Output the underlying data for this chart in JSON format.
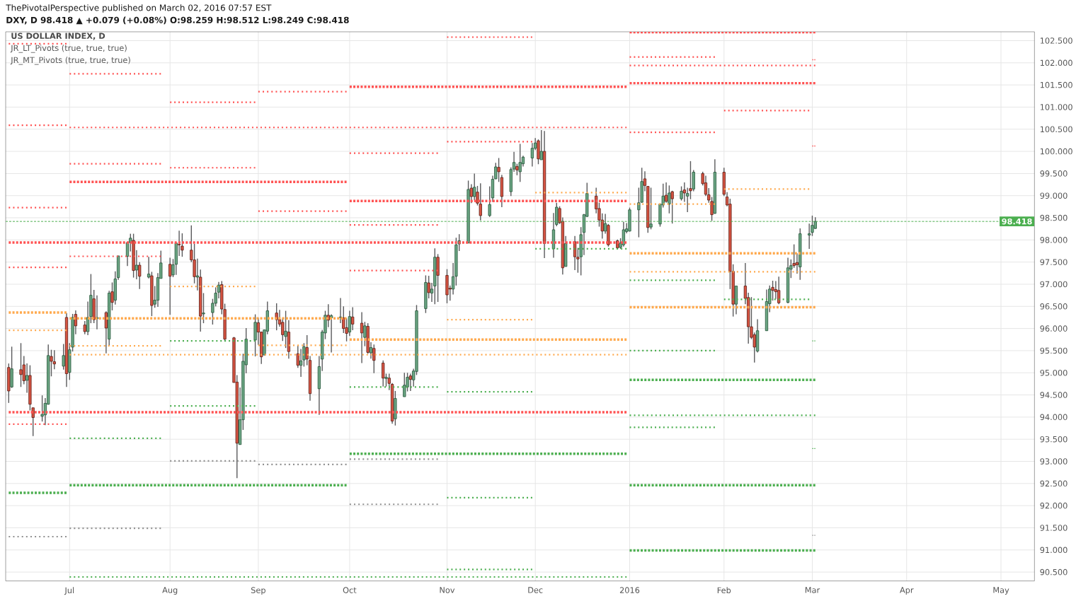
{
  "chart_data": {
    "type": "candlestick",
    "title": "US DOLLAR INDEX, D",
    "annotations": [
      "ThePivotalPerspective published on March 02, 2016 07:57 EST",
      "DXY, D 98.418 ▲ +0.079 (+0.08%) O:98.259 H:98.512 L:98.249 C:98.418",
      "JR_LT_Pivots (true, true, true)",
      "JR_MT_Pivots (true, true, true)"
    ],
    "x": [
      "2015-06-11",
      "2015-06-12",
      "2015-06-15",
      "2015-06-16",
      "2015-06-17",
      "2015-06-18",
      "2015-06-19",
      "2015-06-22",
      "2015-06-23",
      "2015-06-24",
      "2015-06-25",
      "2015-06-26",
      "2015-06-29",
      "2015-06-30",
      "2015-07-01",
      "2015-07-02",
      "2015-07-03",
      "2015-07-06",
      "2015-07-07",
      "2015-07-08",
      "2015-07-09",
      "2015-07-10",
      "2015-07-13",
      "2015-07-14",
      "2015-07-15",
      "2015-07-16",
      "2015-07-17",
      "2015-07-20",
      "2015-07-21",
      "2015-07-22",
      "2015-07-23",
      "2015-07-24",
      "2015-07-27",
      "2015-07-28",
      "2015-07-29",
      "2015-07-30",
      "2015-07-31",
      "2015-08-03",
      "2015-08-04",
      "2015-08-05",
      "2015-08-06",
      "2015-08-07",
      "2015-08-10",
      "2015-08-11",
      "2015-08-12",
      "2015-08-13",
      "2015-08-14",
      "2015-08-17",
      "2015-08-18",
      "2015-08-19",
      "2015-08-20",
      "2015-08-21",
      "2015-08-24",
      "2015-08-25",
      "2015-08-26",
      "2015-08-27",
      "2015-08-28",
      "2015-08-31",
      "2015-09-01",
      "2015-09-02",
      "2015-09-03",
      "2015-09-04",
      "2015-09-07",
      "2015-09-08",
      "2015-09-09",
      "2015-09-10",
      "2015-09-11",
      "2015-09-14",
      "2015-09-15",
      "2015-09-16",
      "2015-09-17",
      "2015-09-18",
      "2015-09-21",
      "2015-09-22",
      "2015-09-23",
      "2015-09-24",
      "2015-09-25",
      "2015-09-28",
      "2015-09-29",
      "2015-09-30",
      "2015-10-01",
      "2015-10-02",
      "2015-10-05",
      "2015-10-06",
      "2015-10-07",
      "2015-10-08",
      "2015-10-09",
      "2015-10-12",
      "2015-10-13",
      "2015-10-14",
      "2015-10-15",
      "2015-10-16",
      "2015-10-19",
      "2015-10-20",
      "2015-10-21",
      "2015-10-22",
      "2015-10-23",
      "2015-10-26",
      "2015-10-27",
      "2015-10-28",
      "2015-10-29",
      "2015-10-30",
      "2015-11-02",
      "2015-11-03",
      "2015-11-04",
      "2015-11-05",
      "2015-11-06",
      "2015-11-09",
      "2015-11-10",
      "2015-11-11",
      "2015-11-12",
      "2015-11-13",
      "2015-11-16",
      "2015-11-17",
      "2015-11-18",
      "2015-11-19",
      "2015-11-20",
      "2015-11-23",
      "2015-11-24",
      "2015-11-25",
      "2015-11-26",
      "2015-11-27",
      "2015-11-30",
      "2015-12-01",
      "2015-12-02",
      "2015-12-03",
      "2015-12-04",
      "2015-12-07",
      "2015-12-08",
      "2015-12-09",
      "2015-12-10",
      "2015-12-11",
      "2015-12-14",
      "2015-12-15",
      "2015-12-16",
      "2015-12-17",
      "2015-12-18",
      "2015-12-21",
      "2015-12-22",
      "2015-12-23",
      "2015-12-24",
      "2015-12-25",
      "2015-12-28",
      "2015-12-29",
      "2015-12-30",
      "2015-12-31",
      "2016-01-01",
      "2016-01-04",
      "2016-01-05",
      "2016-01-06",
      "2016-01-07",
      "2016-01-08",
      "2016-01-11",
      "2016-01-12",
      "2016-01-13",
      "2016-01-14",
      "2016-01-15",
      "2016-01-18",
      "2016-01-19",
      "2016-01-20",
      "2016-01-21",
      "2016-01-22",
      "2016-01-25",
      "2016-01-26",
      "2016-01-27",
      "2016-01-28",
      "2016-01-29",
      "2016-02-01",
      "2016-02-02",
      "2016-02-03",
      "2016-02-04",
      "2016-02-05",
      "2016-02-08",
      "2016-02-09",
      "2016-02-10",
      "2016-02-11",
      "2016-02-12",
      "2016-02-15",
      "2016-02-16",
      "2016-02-17",
      "2016-02-18",
      "2016-02-19",
      "2016-02-22",
      "2016-02-23",
      "2016-02-24",
      "2016-02-25",
      "2016-02-26",
      "2016-02-29",
      "2016-03-01",
      "2016-03-02"
    ],
    "ohlc": [
      [
        95.12,
        95.21,
        94.32,
        94.59
      ],
      [
        94.68,
        95.59,
        94.66,
        95.09
      ],
      [
        95.07,
        95.67,
        94.68,
        94.96
      ],
      [
        95.18,
        95.38,
        94.74,
        94.82
      ],
      [
        94.83,
        95.21,
        94.55,
        94.94
      ],
      [
        94.94,
        95.17,
        94.15,
        94.29
      ],
      [
        94.21,
        94.21,
        93.57,
        93.99
      ],
      [
        94.02,
        94.49,
        93.9,
        94.06
      ],
      [
        94.05,
        94.43,
        93.82,
        94.31
      ],
      [
        94.29,
        95.64,
        94.28,
        95.39
      ],
      [
        95.37,
        95.52,
        94.92,
        95.26
      ],
      [
        95.25,
        95.51,
        95.08,
        95.2
      ],
      [
        95.15,
        95.65,
        95.07,
        95.39
      ],
      [
        96.25,
        96.35,
        94.68,
        94.98
      ],
      [
        95.01,
        95.67,
        94.84,
        95.52
      ],
      [
        95.58,
        96.33,
        95.48,
        96.25
      ],
      [
        96.32,
        96.41,
        95.87,
        96.06
      ],
      [
        96.08,
        96.17,
        95.87,
        95.93
      ],
      [
        95.93,
        96.61,
        95.85,
        96.25
      ],
      [
        96.27,
        97.23,
        96.12,
        96.75
      ],
      [
        96.67,
        96.87,
        96.12,
        96.2
      ],
      [
        96.22,
        96.75,
        95.98,
        96.25
      ],
      [
        96.36,
        96.39,
        95.44,
        96.01
      ],
      [
        95.76,
        96.85,
        95.61,
        96.8
      ],
      [
        96.83,
        97.04,
        96.41,
        96.59
      ],
      [
        96.64,
        97.29,
        96.54,
        97.12
      ],
      [
        97.15,
        97.64,
        97.1,
        97.64
      ],
      [
        97.63,
        97.94,
        97.41,
        97.94
      ],
      [
        97.94,
        98.14,
        97.74,
        98.04
      ],
      [
        97.99,
        98.14,
        97.15,
        97.31
      ],
      [
        97.32,
        97.77,
        97.11,
        97.43
      ],
      [
        97.43,
        97.5,
        96.89,
        97.18
      ],
      [
        97.16,
        97.62,
        97.13,
        97.23
      ],
      [
        97.19,
        97.28,
        96.28,
        96.52
      ],
      [
        96.55,
        96.96,
        96.47,
        96.64
      ],
      [
        96.64,
        97.25,
        96.49,
        97.15
      ],
      [
        97.13,
        97.76,
        97.13,
        97.48
      ],
      [
        97.45,
        97.6,
        96.31,
        97.18
      ],
      [
        97.21,
        97.57,
        97.16,
        97.44
      ],
      [
        97.45,
        97.93,
        97.21,
        97.93
      ],
      [
        97.9,
        98.21,
        97.64,
        97.89
      ],
      [
        97.86,
        98.15,
        97.62,
        97.77
      ],
      [
        97.77,
        98.33,
        97.5,
        97.55
      ],
      [
        97.55,
        97.91,
        97.02,
        97.17
      ],
      [
        97.16,
        97.58,
        96.86,
        97.19
      ],
      [
        97.16,
        97.33,
        95.93,
        96.28
      ],
      [
        96.33,
        96.8,
        96.12,
        96.35
      ],
      [
        96.36,
        96.67,
        96.09,
        96.57
      ],
      [
        96.57,
        96.93,
        96.5,
        96.8
      ],
      [
        96.82,
        97.05,
        96.68,
        96.98
      ],
      [
        96.99,
        97.07,
        96.32,
        96.44
      ],
      [
        96.43,
        96.56,
        95.71,
        95.76
      ],
      [
        95.79,
        95.81,
        94.78,
        94.78
      ],
      [
        94.79,
        94.95,
        92.62,
        93.41
      ],
      [
        93.38,
        94.67,
        93.38,
        93.94
      ],
      [
        93.94,
        95.43,
        93.71,
        95.26
      ],
      [
        95.18,
        96.01,
        94.99,
        95.76
      ],
      [
        95.74,
        96.32,
        95.37,
        96.14
      ],
      [
        96.13,
        96.24,
        95.63,
        95.92
      ],
      [
        95.92,
        95.93,
        95.2,
        95.36
      ],
      [
        95.4,
        95.97,
        95.4,
        95.97
      ],
      [
        95.94,
        96.61,
        95.87,
        96.4
      ],
      [
        96.35,
        96.57,
        95.96,
        96.2
      ],
      [
        96.2,
        96.42,
        96.04,
        96.1
      ],
      [
        96.14,
        96.24,
        95.72,
        95.86
      ],
      [
        95.82,
        96.4,
        95.56,
        95.94
      ],
      [
        95.92,
        96.19,
        95.32,
        95.48
      ],
      [
        95.43,
        95.62,
        95.11,
        95.17
      ],
      [
        95.17,
        95.54,
        94.91,
        95.27
      ],
      [
        95.29,
        95.67,
        95.14,
        95.59
      ],
      [
        95.57,
        95.85,
        95.17,
        95.31
      ],
      [
        95.28,
        95.38,
        94.37,
        94.53
      ],
      [
        94.64,
        95.38,
        94.05,
        95.14
      ],
      [
        95.31,
        95.97,
        95.04,
        95.92
      ],
      [
        95.9,
        96.4,
        95.76,
        96.3
      ],
      [
        96.3,
        96.55,
        96.03,
        96.19
      ],
      [
        96.24,
        96.32,
        95.46,
        96.29
      ],
      [
        96.25,
        96.69,
        96.12,
        96.26
      ],
      [
        96.24,
        96.5,
        95.9,
        96
      ],
      [
        96.02,
        96.23,
        95.71,
        95.89
      ],
      [
        95.92,
        96.4,
        95.83,
        96.27
      ],
      [
        96.26,
        96.48,
        95.96,
        96.1
      ],
      [
        96.12,
        96.37,
        95.22,
        95.9
      ],
      [
        95.8,
        96.15,
        95.6,
        96.06
      ],
      [
        96.05,
        96.12,
        95.43,
        95.46
      ],
      [
        95.45,
        95.69,
        95.32,
        95.57
      ],
      [
        95.55,
        95.64,
        94.99,
        95.28
      ],
      [
        95.22,
        95.28,
        94.69,
        94.88
      ],
      [
        94.87,
        94.98,
        94.69,
        94.9
      ],
      [
        94.88,
        94.98,
        94.61,
        94.76
      ],
      [
        94.74,
        94.77,
        93.85,
        93.91
      ],
      [
        93.96,
        94.59,
        93.81,
        94.42
      ],
      [
        94.46,
        95,
        94.46,
        94.72
      ],
      [
        94.68,
        95,
        94.58,
        94.9
      ],
      [
        94.93,
        94.98,
        94.59,
        94.85
      ],
      [
        94.84,
        95.09,
        94.69,
        95.04
      ],
      [
        95.03,
        96.53,
        94.95,
        96.4
      ],
      [
        96.45,
        97.2,
        96.35,
        97.04
      ],
      [
        97.03,
        97.19,
        96.68,
        96.81
      ],
      [
        96.8,
        97.03,
        96.6,
        96.89
      ],
      [
        96.96,
        97.81,
        96.55,
        97.61
      ],
      [
        97.61,
        97.68,
        96.6,
        97.2
      ],
      [
        97.2,
        97.34,
        96.57,
        96.76
      ],
      [
        96.91,
        96.97,
        96.63,
        96.89
      ],
      [
        96.89,
        97.48,
        96.77,
        97.17
      ],
      [
        97.18,
        98.05,
        96.97,
        97.89
      ],
      [
        97.91,
        98.13,
        97.75,
        97.98
      ],
      [
        97.93,
        99.34,
        97.93,
        99.14
      ],
      [
        99.17,
        99.26,
        98.83,
        98.98
      ],
      [
        98.98,
        99.5,
        98.89,
        99.19
      ],
      [
        99.08,
        99.22,
        98.78,
        98.83
      ],
      [
        98.81,
        99.28,
        98.44,
        98.55
      ],
      [
        98.55,
        99.21,
        98.52,
        98.8
      ],
      [
        98.95,
        99.45,
        98.86,
        99.37
      ],
      [
        99.38,
        99.74,
        99.37,
        99.65
      ],
      [
        99.64,
        99.85,
        99.31,
        99.54
      ],
      [
        99.41,
        99.47,
        98.74,
        98.98
      ],
      [
        99.09,
        99.64,
        98.99,
        99.59
      ],
      [
        99.6,
        99.99,
        99.54,
        99.75
      ],
      [
        99.66,
        99.72,
        99.46,
        99.58
      ],
      [
        99.54,
        100.17,
        99.31,
        99.75
      ],
      [
        99.72,
        99.9,
        99.66,
        99.87
      ],
      [
        99.85,
        100.19,
        99.66,
        100.07
      ],
      [
        100.07,
        100.3,
        100.03,
        100.19
      ],
      [
        100.24,
        100.27,
        99.71,
        99.83
      ],
      [
        99.81,
        100.48,
        99.81,
        100
      ],
      [
        100,
        100.46,
        97.59,
        97.92
      ],
      [
        97.8,
        98.61,
        97.6,
        98.23
      ],
      [
        98.35,
        98.84,
        98.31,
        98.74
      ],
      [
        98.71,
        98.76,
        98.36,
        98.39
      ],
      [
        98.42,
        98.51,
        97.22,
        97.37
      ],
      [
        97.4,
        98.09,
        97.4,
        97.92
      ],
      [
        97.96,
        98.09,
        97.32,
        97.62
      ],
      [
        97.61,
        97.82,
        97.26,
        97.57
      ],
      [
        97.62,
        98.29,
        97.2,
        98.12
      ],
      [
        98.17,
        98.59,
        97.66,
        98.57
      ],
      [
        98.53,
        99.29,
        98.52,
        99.05
      ],
      [
        98.99,
        99.18,
        98.6,
        98.7
      ],
      [
        98.71,
        98.84,
        98.3,
        98.45
      ],
      [
        98.45,
        98.6,
        98.03,
        98.2
      ],
      [
        98.2,
        98.59,
        98.14,
        98.37
      ],
      [
        98.33,
        98.36,
        97.85,
        97.89
      ],
      [
        97.98,
        98.01,
        97.81,
        97.82
      ],
      [
        97.83,
        98.04,
        97.8,
        97.93
      ],
      [
        97.89,
        98.41,
        97.85,
        98.23
      ],
      [
        98.19,
        98.38,
        98.15,
        98.25
      ],
      [
        98.2,
        98.73,
        98.19,
        98.68
      ],
      [
        98.68,
        99.18,
        98.06,
        98.84
      ],
      [
        98.85,
        99.63,
        98.84,
        99.32
      ],
      [
        99.38,
        99.55,
        99.1,
        99.23
      ],
      [
        99.21,
        99.21,
        98.16,
        98.28
      ],
      [
        98.29,
        99.18,
        98.24,
        98.36
      ],
      [
        98.36,
        98.81,
        98.3,
        98.81
      ],
      [
        98.79,
        99.27,
        98.73,
        98.99
      ],
      [
        99.01,
        99.3,
        98.84,
        98.87
      ],
      [
        98.81,
        99.23,
        98.6,
        99.06
      ],
      [
        99.09,
        99.11,
        98.37,
        98.93
      ],
      [
        98.93,
        99.21,
        98.89,
        99.1
      ],
      [
        99.13,
        99.3,
        98.86,
        99.06
      ],
      [
        98.99,
        99.18,
        98.63,
        99.05
      ],
      [
        99.16,
        99.78,
        98.92,
        99.11
      ],
      [
        99.15,
        99.58,
        99.1,
        99.53
      ],
      [
        99.5,
        99.54,
        99.23,
        99.27
      ],
      [
        99.29,
        99.45,
        98.99,
        99.03
      ],
      [
        99.02,
        99.17,
        98.84,
        98.9
      ],
      [
        98.87,
        98.97,
        98.43,
        98.57
      ],
      [
        98.6,
        99.82,
        98.59,
        99.53
      ],
      [
        99.53,
        99.63,
        98.99,
        99.03
      ],
      [
        98.97,
        99.08,
        98.76,
        98.79
      ],
      [
        98.81,
        98.93,
        96.89,
        97.29
      ],
      [
        97.29,
        97.45,
        96.27,
        96.55
      ],
      [
        96.55,
        96.96,
        96.32,
        96.96
      ],
      [
        96.96,
        97.48,
        96.55,
        96.68
      ],
      [
        96.7,
        96.81,
        95.66,
        96.04
      ],
      [
        96.04,
        96.71,
        95.76,
        95.8
      ],
      [
        95.86,
        95.91,
        95.23,
        95.58
      ],
      [
        95.49,
        96.21,
        95.46,
        95.95
      ],
      [
        95.95,
        96.88,
        95.95,
        96.61
      ],
      [
        96.56,
        96.97,
        96.37,
        96.89
      ],
      [
        96.93,
        97.08,
        96.63,
        96.86
      ],
      [
        96.88,
        97.07,
        96.67,
        96.83
      ],
      [
        96.86,
        97.17,
        96.55,
        96.58
      ],
      [
        96.59,
        97.6,
        96.57,
        97.37
      ],
      [
        97.34,
        97.56,
        97.14,
        97.42
      ],
      [
        97.47,
        97.9,
        97.37,
        97.42
      ],
      [
        97.49,
        97.7,
        97.24,
        97.44
      ],
      [
        97.39,
        98.26,
        97.1,
        98.14
      ],
      [
        98.11,
        98.37,
        97.8,
        98.14
      ],
      [
        98.17,
        98.55,
        98.09,
        98.33
      ],
      [
        98.259,
        98.512,
        98.249,
        98.418
      ]
    ],
    "series": [
      {
        "type": "line",
        "x": [
          "2015-06-11",
          "2015-06-30"
        ],
        "values": [
          102.43,
          102.43
        ],
        "color": "#ff5252",
        "line_style": "dotted"
      },
      {
        "type": "line",
        "x": [
          "2015-11-02",
          "2015-11-30"
        ],
        "values": [
          102.58,
          102.58
        ],
        "color": "#ff5252",
        "line_style": "dotted"
      },
      {
        "type": "line",
        "x": [
          "2016-01-01",
          "2016-03-02"
        ],
        "values": [
          102.69,
          102.69
        ],
        "color": "#ff5252",
        "line_style": "dashed"
      },
      {
        "type": "line",
        "x": [
          "2016-01-01",
          "2016-01-29"
        ],
        "values": [
          102.13,
          102.13
        ],
        "color": "#ff5252",
        "line_style": "dotted"
      },
      {
        "type": "line",
        "x": [
          "2016-03-01",
          "2016-03-02"
        ],
        "values": [
          102.07,
          102.07
        ],
        "color": "#ff5252",
        "line_style": "dotted"
      },
      {
        "type": "line",
        "x": [
          "2016-01-01",
          "2016-03-02"
        ],
        "values": [
          101.94,
          101.94
        ],
        "color": "#ff5252",
        "line_style": "dotted"
      },
      {
        "type": "line",
        "x": [
          "2015-07-01",
          "2015-07-31"
        ],
        "values": [
          101.75,
          101.75
        ],
        "color": "#ff5252",
        "line_style": "dotted"
      },
      {
        "type": "line",
        "x": [
          "2016-01-01",
          "2016-03-02"
        ],
        "values": [
          101.54,
          101.54
        ],
        "color": "#ff5252",
        "line_style": "dashed"
      },
      {
        "type": "line",
        "x": [
          "2015-10-01",
          "2015-12-31"
        ],
        "values": [
          101.46,
          101.46
        ],
        "color": "#ff5252",
        "line_style": "dashed"
      },
      {
        "type": "line",
        "x": [
          "2015-09-01",
          "2015-09-30"
        ],
        "values": [
          101.35,
          101.35
        ],
        "color": "#ff5252",
        "line_style": "dotted"
      },
      {
        "type": "line",
        "x": [
          "2015-08-03",
          "2015-08-31"
        ],
        "values": [
          101.11,
          101.11
        ],
        "color": "#ff5252",
        "line_style": "dotted"
      },
      {
        "type": "line",
        "x": [
          "2016-02-01",
          "2016-02-29"
        ],
        "values": [
          100.92,
          100.92
        ],
        "color": "#ff5252",
        "line_style": "dotted"
      },
      {
        "type": "line",
        "x": [
          "2015-06-11",
          "2015-06-30"
        ],
        "values": [
          100.59,
          100.59
        ],
        "color": "#ff5252",
        "line_style": "dotted"
      },
      {
        "type": "line",
        "x": [
          "2015-07-01",
          "2015-12-31"
        ],
        "values": [
          100.54,
          100.54
        ],
        "color": "#ff5252",
        "line_style": "dotted"
      },
      {
        "type": "line",
        "x": [
          "2016-01-01",
          "2016-01-29"
        ],
        "values": [
          100.43,
          100.43
        ],
        "color": "#ff5252",
        "line_style": "dotted"
      },
      {
        "type": "line",
        "x": [
          "2015-11-02",
          "2015-11-30"
        ],
        "values": [
          100.22,
          100.22
        ],
        "color": "#ff5252",
        "line_style": "dotted"
      },
      {
        "type": "line",
        "x": [
          "2016-03-01",
          "2016-03-02"
        ],
        "values": [
          100.12,
          100.12
        ],
        "color": "#ff5252",
        "line_style": "dotted"
      },
      {
        "type": "line",
        "x": [
          "2015-10-01",
          "2015-10-30"
        ],
        "values": [
          99.96,
          99.96
        ],
        "color": "#ff5252",
        "line_style": "dotted"
      },
      {
        "type": "line",
        "x": [
          "2015-07-01",
          "2015-07-31"
        ],
        "values": [
          99.72,
          99.72
        ],
        "color": "#ff5252",
        "line_style": "dotted"
      },
      {
        "type": "line",
        "x": [
          "2015-08-03",
          "2015-08-31"
        ],
        "values": [
          99.63,
          99.63
        ],
        "color": "#ff5252",
        "line_style": "dotted"
      },
      {
        "type": "line",
        "x": [
          "2015-07-01",
          "2015-09-30"
        ],
        "values": [
          99.31,
          99.31
        ],
        "color": "#ff5252",
        "line_style": "dashed"
      },
      {
        "type": "line",
        "x": [
          "2015-10-01",
          "2015-12-31"
        ],
        "values": [
          98.88,
          98.88
        ],
        "color": "#ff5252",
        "line_style": "dashed"
      },
      {
        "type": "line",
        "x": [
          "2015-06-11",
          "2015-06-30"
        ],
        "values": [
          98.73,
          98.73
        ],
        "color": "#ff5252",
        "line_style": "dotted"
      },
      {
        "type": "line",
        "x": [
          "2015-09-01",
          "2015-09-30"
        ],
        "values": [
          98.65,
          98.65
        ],
        "color": "#ff5252",
        "line_style": "dotted"
      },
      {
        "type": "line",
        "x": [
          "2015-10-01",
          "2015-10-30"
        ],
        "values": [
          98.34,
          98.34
        ],
        "color": "#ff5252",
        "line_style": "dotted"
      },
      {
        "type": "line",
        "x": [
          "2015-06-11",
          "2015-12-31"
        ],
        "values": [
          97.94,
          97.94
        ],
        "color": "#ff5252",
        "line_style": "dashed"
      },
      {
        "type": "line",
        "x": [
          "2015-07-01",
          "2015-07-31"
        ],
        "values": [
          97.63,
          97.63
        ],
        "color": "#ff5252",
        "line_style": "dotted"
      },
      {
        "type": "line",
        "x": [
          "2015-06-11",
          "2015-06-30"
        ],
        "values": [
          97.38,
          97.38
        ],
        "color": "#ff5252",
        "line_style": "dotted"
      },
      {
        "type": "line",
        "x": [
          "2015-10-01",
          "2015-10-30"
        ],
        "values": [
          97.31,
          97.31
        ],
        "color": "#ff5252",
        "line_style": "dotted"
      },
      {
        "type": "line",
        "x": [
          "2015-06-11",
          "2015-12-31"
        ],
        "values": [
          94.11,
          94.11
        ],
        "color": "#ff5252",
        "line_style": "dashed"
      },
      {
        "type": "line",
        "x": [
          "2015-06-11",
          "2015-06-30"
        ],
        "values": [
          93.84,
          93.84
        ],
        "color": "#ff5252",
        "line_style": "dotted"
      },
      {
        "type": "line",
        "x": [
          "2015-12-01",
          "2015-12-31"
        ],
        "values": [
          99.07,
          99.07
        ],
        "color": "#ffa94d",
        "line_style": "dotted"
      },
      {
        "type": "line",
        "x": [
          "2016-02-01",
          "2016-02-29"
        ],
        "values": [
          99.15,
          99.15
        ],
        "color": "#ffa94d",
        "line_style": "dotted"
      },
      {
        "type": "line",
        "x": [
          "2016-01-01",
          "2016-01-29"
        ],
        "values": [
          98.81,
          98.81
        ],
        "color": "#ffa94d",
        "line_style": "dotted"
      },
      {
        "type": "line",
        "x": [
          "2016-01-01",
          "2016-03-02"
        ],
        "values": [
          97.7,
          97.7
        ],
        "color": "#ffa94d",
        "line_style": "dashed"
      },
      {
        "type": "line",
        "x": [
          "2016-01-01",
          "2016-03-02"
        ],
        "values": [
          97.28,
          97.28
        ],
        "color": "#ffa94d",
        "line_style": "dotted"
      },
      {
        "type": "line",
        "x": [
          "2015-08-03",
          "2015-08-31"
        ],
        "values": [
          96.95,
          96.95
        ],
        "color": "#ffa94d",
        "line_style": "dotted"
      },
      {
        "type": "line",
        "x": [
          "2016-01-01",
          "2016-03-02"
        ],
        "values": [
          96.48,
          96.48
        ],
        "color": "#ffa94d",
        "line_style": "dashed"
      },
      {
        "type": "line",
        "x": [
          "2015-06-11",
          "2015-06-30"
        ],
        "values": [
          96.36,
          96.36
        ],
        "color": "#ffa94d",
        "line_style": "dashed"
      },
      {
        "type": "line",
        "x": [
          "2015-07-01",
          "2015-09-30"
        ],
        "values": [
          96.23,
          96.23
        ],
        "color": "#ffa94d",
        "line_style": "dashed"
      },
      {
        "type": "line",
        "x": [
          "2015-11-02",
          "2015-11-30"
        ],
        "values": [
          96.2,
          96.2
        ],
        "color": "#ffa94d",
        "line_style": "dotted"
      },
      {
        "type": "line",
        "x": [
          "2015-06-11",
          "2015-06-30"
        ],
        "values": [
          95.96,
          95.96
        ],
        "color": "#ffa94d",
        "line_style": "dotted"
      },
      {
        "type": "line",
        "x": [
          "2015-10-01",
          "2015-12-31"
        ],
        "values": [
          95.75,
          95.75
        ],
        "color": "#ffa94d",
        "line_style": "dashed"
      },
      {
        "type": "line",
        "x": [
          "2015-07-01",
          "2015-07-31"
        ],
        "values": [
          95.61,
          95.61
        ],
        "color": "#ffa94d",
        "line_style": "dotted"
      },
      {
        "type": "line",
        "x": [
          "2015-09-01",
          "2015-09-30"
        ],
        "values": [
          95.62,
          95.62
        ],
        "color": "#ffa94d",
        "line_style": "dotted"
      },
      {
        "type": "line",
        "x": [
          "2015-07-01",
          "2015-12-31"
        ],
        "values": [
          95.41,
          95.41
        ],
        "color": "#ffa94d",
        "line_style": "dotted"
      },
      {
        "type": "line",
        "x": [
          "2015-12-01",
          "2015-12-31"
        ],
        "values": [
          97.8,
          97.8
        ],
        "color": "#4caf50",
        "line_style": "dotted"
      },
      {
        "type": "line",
        "x": [
          "2016-01-01",
          "2016-01-29"
        ],
        "values": [
          97.09,
          97.09
        ],
        "color": "#4caf50",
        "line_style": "dotted"
      },
      {
        "type": "line",
        "x": [
          "2016-02-01",
          "2016-02-29"
        ],
        "values": [
          96.66,
          96.66
        ],
        "color": "#4caf50",
        "line_style": "dotted"
      },
      {
        "type": "line",
        "x": [
          "2015-08-03",
          "2015-08-31"
        ],
        "values": [
          95.72,
          95.72
        ],
        "color": "#4caf50",
        "line_style": "dotted"
      },
      {
        "type": "line",
        "x": [
          "2016-03-01",
          "2016-03-02"
        ],
        "values": [
          95.72,
          95.72
        ],
        "color": "#4caf50",
        "line_style": "dotted"
      },
      {
        "type": "line",
        "x": [
          "2016-01-01",
          "2016-01-29"
        ],
        "values": [
          95.5,
          95.5
        ],
        "color": "#4caf50",
        "line_style": "dotted"
      },
      {
        "type": "line",
        "x": [
          "2016-01-01",
          "2016-03-02"
        ],
        "values": [
          94.84,
          94.84
        ],
        "color": "#4caf50",
        "line_style": "dashed"
      },
      {
        "type": "line",
        "x": [
          "2015-10-01",
          "2015-10-30"
        ],
        "values": [
          94.68,
          94.68
        ],
        "color": "#4caf50",
        "line_style": "dotted"
      },
      {
        "type": "line",
        "x": [
          "2015-11-02",
          "2015-11-30"
        ],
        "values": [
          94.57,
          94.57
        ],
        "color": "#4caf50",
        "line_style": "dotted"
      },
      {
        "type": "line",
        "x": [
          "2015-08-03",
          "2015-08-31"
        ],
        "values": [
          94.25,
          94.25
        ],
        "color": "#4caf50",
        "line_style": "dotted"
      },
      {
        "type": "line",
        "x": [
          "2016-01-01",
          "2016-03-02"
        ],
        "values": [
          94.04,
          94.04
        ],
        "color": "#4caf50",
        "line_style": "dotted"
      },
      {
        "type": "line",
        "x": [
          "2016-01-01",
          "2016-01-29"
        ],
        "values": [
          93.77,
          93.77
        ],
        "color": "#4caf50",
        "line_style": "dotted"
      },
      {
        "type": "line",
        "x": [
          "2015-07-01",
          "2015-07-31"
        ],
        "values": [
          93.52,
          93.52
        ],
        "color": "#4caf50",
        "line_style": "dotted"
      },
      {
        "type": "line",
        "x": [
          "2016-03-01",
          "2016-03-02"
        ],
        "values": [
          93.29,
          93.29
        ],
        "color": "#4caf50",
        "line_style": "dotted"
      },
      {
        "type": "line",
        "x": [
          "2015-10-01",
          "2015-12-31"
        ],
        "values": [
          93.17,
          93.17
        ],
        "color": "#4caf50",
        "line_style": "dashed"
      },
      {
        "type": "line",
        "x": [
          "2015-10-01",
          "2015-10-30"
        ],
        "values": [
          93.05,
          93.05
        ],
        "color": "#909090",
        "line_style": "dotted"
      },
      {
        "type": "line",
        "x": [
          "2015-08-03",
          "2015-08-31"
        ],
        "values": [
          93.01,
          93.01
        ],
        "color": "#909090",
        "line_style": "dotted"
      },
      {
        "type": "line",
        "x": [
          "2015-09-01",
          "2015-09-30"
        ],
        "values": [
          92.93,
          92.93
        ],
        "color": "#909090",
        "line_style": "dotted"
      },
      {
        "type": "line",
        "x": [
          "2015-07-01",
          "2015-09-30"
        ],
        "values": [
          92.46,
          92.46
        ],
        "color": "#4caf50",
        "line_style": "dashed"
      },
      {
        "type": "line",
        "x": [
          "2016-01-01",
          "2016-03-02"
        ],
        "values": [
          92.46,
          92.46
        ],
        "color": "#4caf50",
        "line_style": "dashed"
      },
      {
        "type": "line",
        "x": [
          "2015-06-11",
          "2015-06-30"
        ],
        "values": [
          92.29,
          92.29
        ],
        "color": "#4caf50",
        "line_style": "dashed"
      },
      {
        "type": "line",
        "x": [
          "2015-11-02",
          "2015-11-30"
        ],
        "values": [
          92.18,
          92.18
        ],
        "color": "#4caf50",
        "line_style": "dotted"
      },
      {
        "type": "line",
        "x": [
          "2015-10-01",
          "2015-10-30"
        ],
        "values": [
          92.03,
          92.03
        ],
        "color": "#909090",
        "line_style": "dotted"
      },
      {
        "type": "line",
        "x": [
          "2015-07-01",
          "2015-07-31"
        ],
        "values": [
          91.49,
          91.49
        ],
        "color": "#909090",
        "line_style": "dotted"
      },
      {
        "type": "line",
        "x": [
          "2016-03-01",
          "2016-03-02"
        ],
        "values": [
          91.33,
          91.33
        ],
        "color": "#909090",
        "line_style": "dotted"
      },
      {
        "type": "line",
        "x": [
          "2015-06-11",
          "2015-06-30"
        ],
        "values": [
          91.3,
          91.3
        ],
        "color": "#909090",
        "line_style": "dotted"
      },
      {
        "type": "line",
        "x": [
          "2016-01-01",
          "2016-03-02"
        ],
        "values": [
          90.99,
          90.99
        ],
        "color": "#4caf50",
        "line_style": "dashed"
      },
      {
        "type": "line",
        "x": [
          "2015-11-02",
          "2015-11-30"
        ],
        "values": [
          90.56,
          90.56
        ],
        "color": "#4caf50",
        "line_style": "dotted"
      },
      {
        "type": "line",
        "x": [
          "2015-07-01",
          "2015-12-31"
        ],
        "values": [
          90.39,
          90.39
        ],
        "color": "#4caf50",
        "line_style": "dotted"
      }
    ],
    "ref_lines": [
      {
        "axis": "y",
        "value": 98.418,
        "label": "98.418",
        "color": "#4caf50",
        "line_style": "dashed"
      }
    ],
    "xlim": [
      "2015-06-10",
      "2016-05-13"
    ],
    "ylim": [
      90.3,
      102.7
    ],
    "xticks": [
      {
        "value": "2015-07-01",
        "label": "Jul"
      },
      {
        "value": "2015-08-03",
        "label": "Aug"
      },
      {
        "value": "2015-09-01",
        "label": "Sep"
      },
      {
        "value": "2015-10-01",
        "label": "Oct"
      },
      {
        "value": "2015-11-02",
        "label": "Nov"
      },
      {
        "value": "2015-12-01",
        "label": "Dec"
      },
      {
        "value": "2016-01-01",
        "label": "2016"
      },
      {
        "value": "2016-02-01",
        "label": "Feb"
      },
      {
        "value": "2016-03-01",
        "label": "Mar"
      },
      {
        "value": "2016-04-01",
        "label": "Apr"
      },
      {
        "value": "2016-05-02",
        "label": "May"
      }
    ],
    "yticks": [
      {
        "value": 90.5,
        "label": "90.500"
      },
      {
        "value": 91,
        "label": "91.000"
      },
      {
        "value": 91.5,
        "label": "91.500"
      },
      {
        "value": 92,
        "label": "92.000"
      },
      {
        "value": 92.5,
        "label": "92.500"
      },
      {
        "value": 93,
        "label": "93.000"
      },
      {
        "value": 93.5,
        "label": "93.500"
      },
      {
        "value": 94,
        "label": "94.000"
      },
      {
        "value": 94.5,
        "label": "94.500"
      },
      {
        "value": 95,
        "label": "95.000"
      },
      {
        "value": 95.5,
        "label": "95.500"
      },
      {
        "value": 96,
        "label": "96.000"
      },
      {
        "value": 96.5,
        "label": "96.500"
      },
      {
        "value": 97,
        "label": "97.000"
      },
      {
        "value": 97.5,
        "label": "97.500"
      },
      {
        "value": 98,
        "label": "98.000"
      },
      {
        "value": 98.5,
        "label": "98.500"
      },
      {
        "value": 99,
        "label": "99.000"
      },
      {
        "value": 99.5,
        "label": "99.500"
      },
      {
        "value": 100,
        "label": "100.000"
      },
      {
        "value": 100.5,
        "label": "100.500"
      },
      {
        "value": 101,
        "label": "101.000"
      },
      {
        "value": 101.5,
        "label": "101.500"
      },
      {
        "value": 102,
        "label": "102.000"
      },
      {
        "value": 102.5,
        "label": "102.500"
      }
    ],
    "grid": true
  }
}
